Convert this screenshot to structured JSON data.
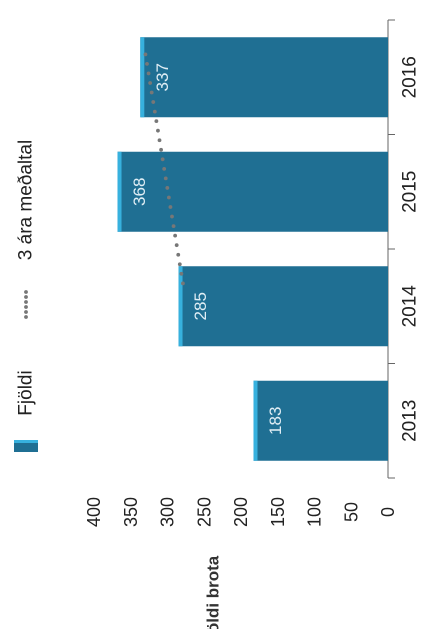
{
  "chart_data": {
    "type": "bar",
    "orientation": "rotated-90-ccw",
    "categories": [
      "2013",
      "2014",
      "2015",
      "2016"
    ],
    "series": [
      {
        "name": "Fjöldi",
        "values": [
          183,
          285,
          368,
          337
        ],
        "color": "#1f6f93",
        "edge_color": "#37b1de"
      },
      {
        "name": "3 ára meðaltal",
        "type": "dotted-line",
        "values": [
          null,
          null,
          279,
          330
        ],
        "color": "#777777"
      }
    ],
    "data_labels": [
      "183",
      "285",
      "368",
      "337"
    ],
    "ylabel": "Fjöldi brota",
    "ylim": [
      0,
      400
    ],
    "y_ticks": [
      "0",
      "50",
      "100",
      "150",
      "200",
      "250",
      "300",
      "350",
      "400"
    ],
    "grid": false,
    "legend_position": "top"
  }
}
